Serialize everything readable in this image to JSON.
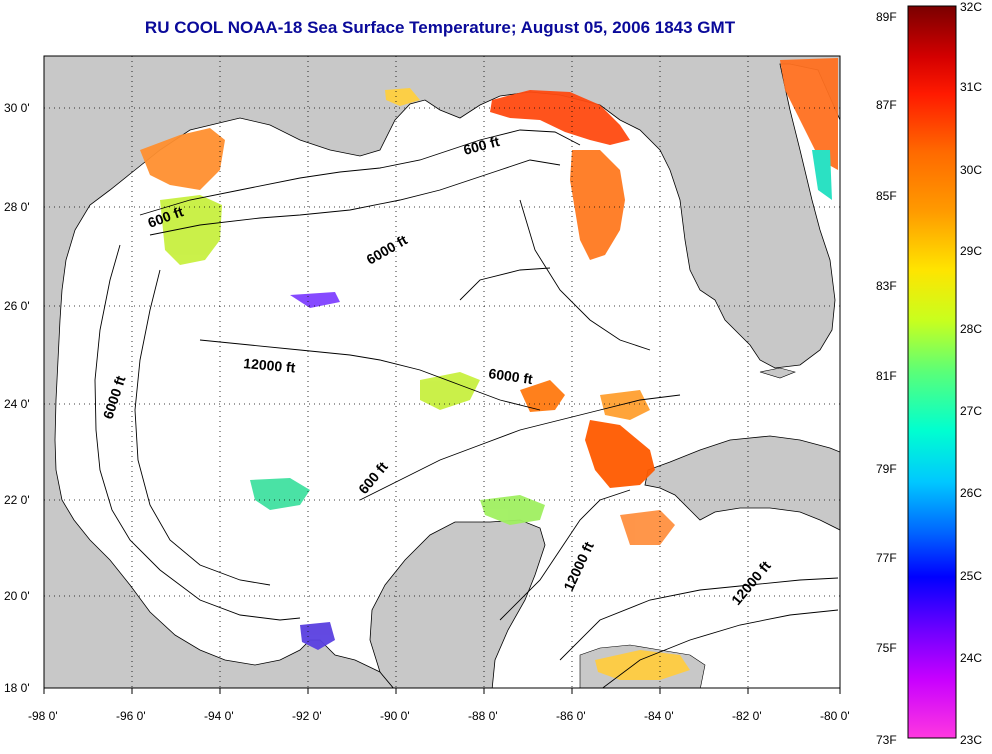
{
  "title": "RU COOL  NOAA-18  Sea Surface Temperature;  August 05, 2006 1843 GMT",
  "lon_labels": [
    "-98 0'",
    "-96 0'",
    "-94 0'",
    "-92 0'",
    "-90 0'",
    "-88 0'",
    "-86 0'",
    "-84 0'",
    "-82 0'",
    "-80 0'"
  ],
  "lat_labels": [
    "30 0'",
    "28 0'",
    "26 0'",
    "24 0'",
    "22 0'",
    "20 0'",
    "18 0'"
  ],
  "contour_labels": {
    "a": "600 ft",
    "b": "600 ft",
    "c": "6000 ft",
    "d": "12000 ft",
    "e": "6000 ft",
    "f": "6000 ft",
    "g": "600 ft",
    "h": "12000 ft",
    "i": "12000 ft"
  },
  "colorbar": {
    "f_labels": [
      "89F",
      "87F",
      "85F",
      "83F",
      "81F",
      "79F",
      "77F",
      "75F",
      "73F"
    ],
    "c_labels": [
      "32C",
      "31C",
      "30C",
      "29C",
      "28C",
      "27C",
      "26C",
      "25C",
      "24C",
      "23C"
    ]
  },
  "colors": {
    "land": "#c8c8c8",
    "water": "#ffffff",
    "grid": "#000000",
    "title": "#0a0a9a"
  }
}
